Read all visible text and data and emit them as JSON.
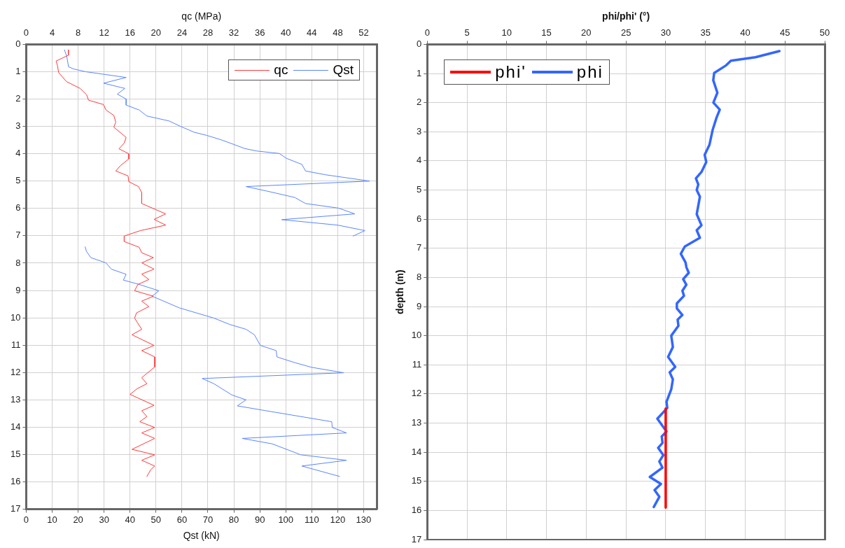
{
  "chart_data": [
    {
      "type": "line",
      "xlabel": "Qst (kN)",
      "x2label": "qc (MPa)",
      "xlim": [
        0,
        135
      ],
      "xticks": [
        0,
        10,
        20,
        30,
        40,
        50,
        60,
        70,
        80,
        90,
        100,
        110,
        120,
        130
      ],
      "x2lim": [
        0,
        54
      ],
      "x2ticks": [
        0,
        4,
        8,
        12,
        16,
        20,
        24,
        28,
        32,
        36,
        40,
        44,
        48,
        52
      ],
      "ylim": [
        17,
        0
      ],
      "yticks": [
        0,
        1,
        2,
        3,
        4,
        5,
        6,
        7,
        8,
        9,
        10,
        11,
        12,
        13,
        14,
        15,
        16,
        17
      ],
      "grid": true,
      "legend": "top right",
      "series": [
        {
          "name": "qc",
          "color": "#ff3b3b",
          "axis": "x2",
          "x": [
            6.5,
            6.5,
            6.2,
            4.6,
            4.8,
            5.0,
            6.2,
            8.3,
            9.3,
            9.6,
            11.9,
            12.3,
            13.5,
            13.8,
            13.5,
            15.4,
            15.1,
            14.3,
            15.8,
            15.8,
            14.5,
            13.8,
            15.7,
            15.8,
            17.3,
            17.8,
            17.8,
            21.5,
            19.7,
            21.5,
            17.6,
            15.1,
            15.1,
            17.4,
            17.8,
            19.6,
            17.8,
            19.7,
            17.8,
            18.9,
            17.2,
            16.7,
            19.6,
            17.8,
            18.9,
            17.0,
            16.7,
            17.2,
            17.8,
            16.3,
            19.7,
            17.8,
            19.8,
            19.8,
            17.8,
            18.6,
            17.1,
            16.0,
            19.7,
            17.8,
            18.6,
            17.5,
            19.8,
            17.8,
            19.8,
            16.3,
            19.8,
            17.8,
            19.8,
            19.2,
            18.6
          ],
          "values": [
            0.2,
            0.4,
            0.43,
            0.61,
            0.76,
            1.03,
            1.36,
            1.61,
            1.84,
            2.04,
            2.2,
            2.4,
            2.6,
            2.84,
            3.03,
            3.4,
            3.61,
            3.82,
            4.0,
            4.19,
            4.44,
            4.63,
            4.81,
            5.02,
            5.2,
            5.42,
            5.82,
            6.2,
            6.4,
            6.61,
            6.81,
            7.01,
            7.21,
            7.42,
            7.62,
            7.8,
            7.99,
            8.22,
            8.4,
            8.6,
            8.78,
            9.01,
            9.21,
            9.39,
            9.59,
            9.82,
            10.01,
            10.2,
            10.42,
            10.62,
            11.01,
            11.2,
            11.43,
            11.8,
            12.19,
            12.41,
            12.59,
            12.8,
            13.2,
            13.4,
            13.61,
            13.8,
            14.01,
            14.21,
            14.41,
            14.81,
            15.01,
            15.21,
            15.42,
            15.55,
            15.8
          ]
        },
        {
          "name": "Qst",
          "color": "#5a86ff",
          "x": [
            14.7,
            15.6,
            16.3,
            18.3,
            22.9,
            38.5,
            29.8,
            38.0,
            35.1,
            38.5,
            38.5,
            43.5,
            46.5,
            55.0,
            59.5,
            64.6,
            69.6,
            75.1,
            79.7,
            84.2,
            88.8,
            97.5,
            100.3,
            106.2,
            107.6,
            115.4,
            132.3,
            84.7,
            92.5,
            103.5,
            107.6,
            120.4,
            126.6,
            98.4,
            120.0,
            130.5,
            125.9,
            null,
            22.7,
            23.2,
            24.9,
            30.7,
            32.8,
            38.5,
            37.4,
            43.2,
            51.1,
            48.5,
            59.1,
            72.3,
            78.3,
            84.7,
            87.9,
            90.2,
            96.3,
            96.6,
            103.5,
            109.9,
            122.3,
            67.8,
            72.3,
            79.2,
            84.7,
            81.3,
            92.5,
            117.7,
            117.9,
            123.4,
            83.2,
            94.8,
            105.8,
            123.4,
            106.2,
            120.7
          ],
          "values": [
            0.2,
            0.43,
            0.82,
            0.9,
            1.0,
            1.21,
            1.42,
            1.61,
            1.82,
            2.0,
            2.22,
            2.4,
            2.62,
            2.8,
            3.0,
            3.21,
            3.33,
            3.49,
            3.65,
            3.81,
            3.9,
            3.99,
            4.17,
            4.39,
            4.63,
            4.77,
            5.0,
            5.2,
            5.36,
            5.6,
            5.82,
            5.99,
            6.2,
            6.41,
            6.61,
            6.81,
            7.01,
            null,
            7.4,
            7.57,
            7.8,
            7.99,
            8.22,
            8.41,
            8.62,
            8.77,
            9.01,
            9.21,
            9.64,
            10.01,
            10.24,
            10.42,
            10.62,
            11.01,
            11.2,
            11.43,
            11.64,
            11.81,
            12.01,
            12.22,
            12.41,
            12.82,
            13.0,
            13.22,
            13.4,
            13.8,
            14.01,
            14.21,
            14.41,
            14.61,
            15.01,
            15.21,
            15.42,
            15.8
          ]
        }
      ]
    },
    {
      "type": "line",
      "xlabel": "phi/phi' (°)",
      "ylabel": "depth (m)",
      "xlim": [
        0,
        50
      ],
      "xticks": [
        0,
        5,
        10,
        15,
        20,
        25,
        30,
        35,
        40,
        45,
        50
      ],
      "ylim": [
        17,
        0
      ],
      "yticks": [
        0,
        1,
        2,
        3,
        4,
        5,
        6,
        7,
        8,
        9,
        10,
        11,
        12,
        13,
        14,
        15,
        16,
        17
      ],
      "grid": true,
      "legend": "top left",
      "series": [
        {
          "name": "phi'",
          "color": "#ff0000",
          "x": [
            30,
            30
          ],
          "values": [
            12.5,
            15.9
          ]
        },
        {
          "name": "phi",
          "color": "#3366ff",
          "x": [
            44.3,
            41.3,
            38.2,
            37.6,
            36.1,
            35.98,
            36.5,
            36.0,
            36.8,
            36.4,
            35.9,
            35.5,
            34.9,
            35.1,
            34.5,
            33.8,
            34.1,
            33.9,
            34.3,
            33.9,
            34.5,
            33.9,
            34.3,
            32.4,
            31.9,
            32.5,
            32.6,
            32.9,
            32.2,
            32.6,
            32.1,
            32.3,
            31.4,
            31.4,
            32.1,
            31.5,
            31.6,
            30.7,
            30.9,
            30.3,
            31.2,
            30.5,
            30.9,
            30.7,
            30.1,
            30.2,
            28.95,
            30.1,
            29.5,
            29.6,
            29.05,
            29.7,
            29.2,
            29.6,
            28.0,
            29.4,
            28.6,
            29.2,
            28.5
          ],
          "values": [
            0.23,
            0.44,
            0.56,
            0.72,
            0.98,
            1.23,
            1.66,
            2.0,
            2.24,
            2.51,
            2.94,
            3.45,
            3.79,
            4.04,
            4.38,
            4.6,
            4.81,
            5.0,
            5.23,
            5.83,
            6.21,
            6.38,
            6.64,
            6.94,
            7.19,
            7.49,
            7.65,
            7.84,
            8.06,
            8.25,
            8.46,
            8.63,
            8.89,
            9.06,
            9.29,
            9.45,
            9.66,
            10.0,
            10.39,
            10.73,
            11.07,
            11.26,
            11.5,
            11.84,
            12.27,
            12.48,
            12.85,
            13.29,
            13.46,
            13.68,
            13.85,
            14.1,
            14.32,
            14.53,
            14.85,
            15.09,
            15.3,
            15.53,
            15.88
          ]
        }
      ]
    }
  ]
}
